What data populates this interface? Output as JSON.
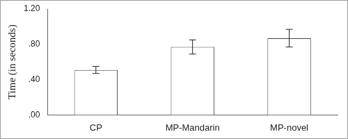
{
  "chart_data": {
    "type": "bar",
    "y_label": "Time (in seconds)",
    "categories": [
      "CP",
      "MP-Mandarin",
      "MP-novel"
    ],
    "values": [
      0.51,
      0.77,
      0.87
    ],
    "errors": [
      0.04,
      0.08,
      0.1
    ],
    "color": "#ffffff",
    "ylim": [
      0,
      1.2
    ],
    "yticks": [
      {
        "value": 0,
        "label": ".00"
      },
      {
        "value": 0.4,
        "label": ".40"
      },
      {
        "value": 0.8,
        "label": ".80"
      },
      {
        "value": 1.2,
        "label": "1.20"
      }
    ],
    "grid": false
  }
}
